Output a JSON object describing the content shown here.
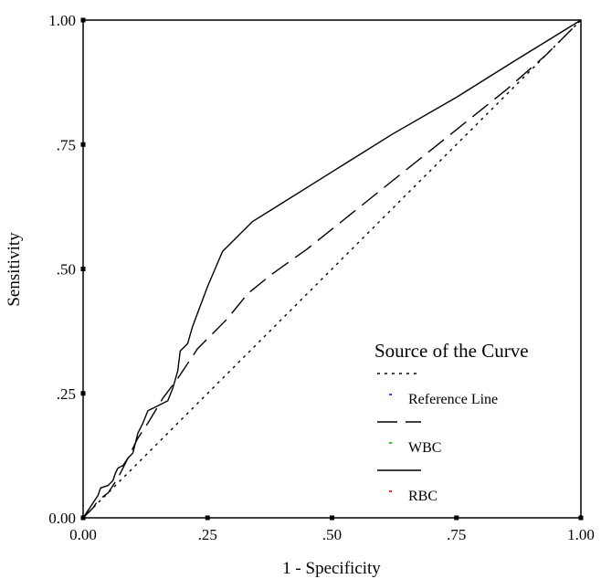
{
  "chart_data": {
    "type": "line",
    "title": "",
    "xlabel": "1 - Specificity",
    "ylabel": "Sensitivity",
    "xlim": [
      0,
      1
    ],
    "ylim": [
      0,
      1
    ],
    "x_ticks": [
      0,
      0.25,
      0.5,
      0.75,
      1
    ],
    "x_tick_labels": [
      "0.00",
      ".25",
      ".50",
      ".75",
      "1.00"
    ],
    "y_ticks": [
      0,
      0.25,
      0.5,
      0.75,
      1
    ],
    "y_tick_labels": [
      "0.00",
      ".25",
      ".50",
      ".75",
      "1.00"
    ],
    "grid": false,
    "legend": {
      "title": "Source of the Curve",
      "placement": "bottom-right",
      "entries": [
        {
          "label": "Reference Line",
          "style": "dotted",
          "marker_color": "#3a3aff"
        },
        {
          "label": "WBC",
          "style": "dashed",
          "marker_color": "#22cc22"
        },
        {
          "label": "RBC",
          "style": "solid",
          "marker_color": "#ff2222"
        }
      ]
    },
    "series": [
      {
        "name": "Reference Line",
        "style": "dotted",
        "points": [
          [
            0,
            0
          ],
          [
            1,
            1
          ]
        ]
      },
      {
        "name": "WBC",
        "style": "dashed",
        "points": [
          [
            0,
            0
          ],
          [
            0.01,
            0.01
          ],
          [
            0.02,
            0.02
          ],
          [
            0.03,
            0.035
          ],
          [
            0.05,
            0.05
          ],
          [
            0.07,
            0.08
          ],
          [
            0.09,
            0.12
          ],
          [
            0.11,
            0.16
          ],
          [
            0.13,
            0.19
          ],
          [
            0.16,
            0.24
          ],
          [
            0.19,
            0.28
          ],
          [
            0.21,
            0.31
          ],
          [
            0.23,
            0.34
          ],
          [
            0.26,
            0.37
          ],
          [
            0.29,
            0.4
          ],
          [
            0.33,
            0.45
          ],
          [
            0.38,
            0.49
          ],
          [
            0.45,
            0.54
          ],
          [
            0.55,
            0.62
          ],
          [
            0.65,
            0.7
          ],
          [
            0.75,
            0.78
          ],
          [
            0.85,
            0.86
          ],
          [
            0.93,
            0.93
          ],
          [
            1,
            1
          ]
        ]
      },
      {
        "name": "RBC",
        "style": "solid",
        "points": [
          [
            0,
            0
          ],
          [
            0.01,
            0.015
          ],
          [
            0.02,
            0.03
          ],
          [
            0.03,
            0.045
          ],
          [
            0.035,
            0.06
          ],
          [
            0.05,
            0.065
          ],
          [
            0.06,
            0.075
          ],
          [
            0.065,
            0.09
          ],
          [
            0.07,
            0.1
          ],
          [
            0.08,
            0.105
          ],
          [
            0.09,
            0.12
          ],
          [
            0.1,
            0.13
          ],
          [
            0.11,
            0.17
          ],
          [
            0.12,
            0.19
          ],
          [
            0.13,
            0.215
          ],
          [
            0.15,
            0.225
          ],
          [
            0.17,
            0.235
          ],
          [
            0.18,
            0.26
          ],
          [
            0.19,
            0.295
          ],
          [
            0.195,
            0.335
          ],
          [
            0.21,
            0.35
          ],
          [
            0.22,
            0.385
          ],
          [
            0.25,
            0.465
          ],
          [
            0.28,
            0.535
          ],
          [
            0.3,
            0.555
          ],
          [
            0.34,
            0.595
          ],
          [
            0.38,
            0.62
          ],
          [
            0.5,
            0.695
          ],
          [
            0.62,
            0.77
          ],
          [
            0.75,
            0.845
          ],
          [
            0.87,
            0.92
          ],
          [
            1,
            1
          ]
        ]
      }
    ]
  }
}
